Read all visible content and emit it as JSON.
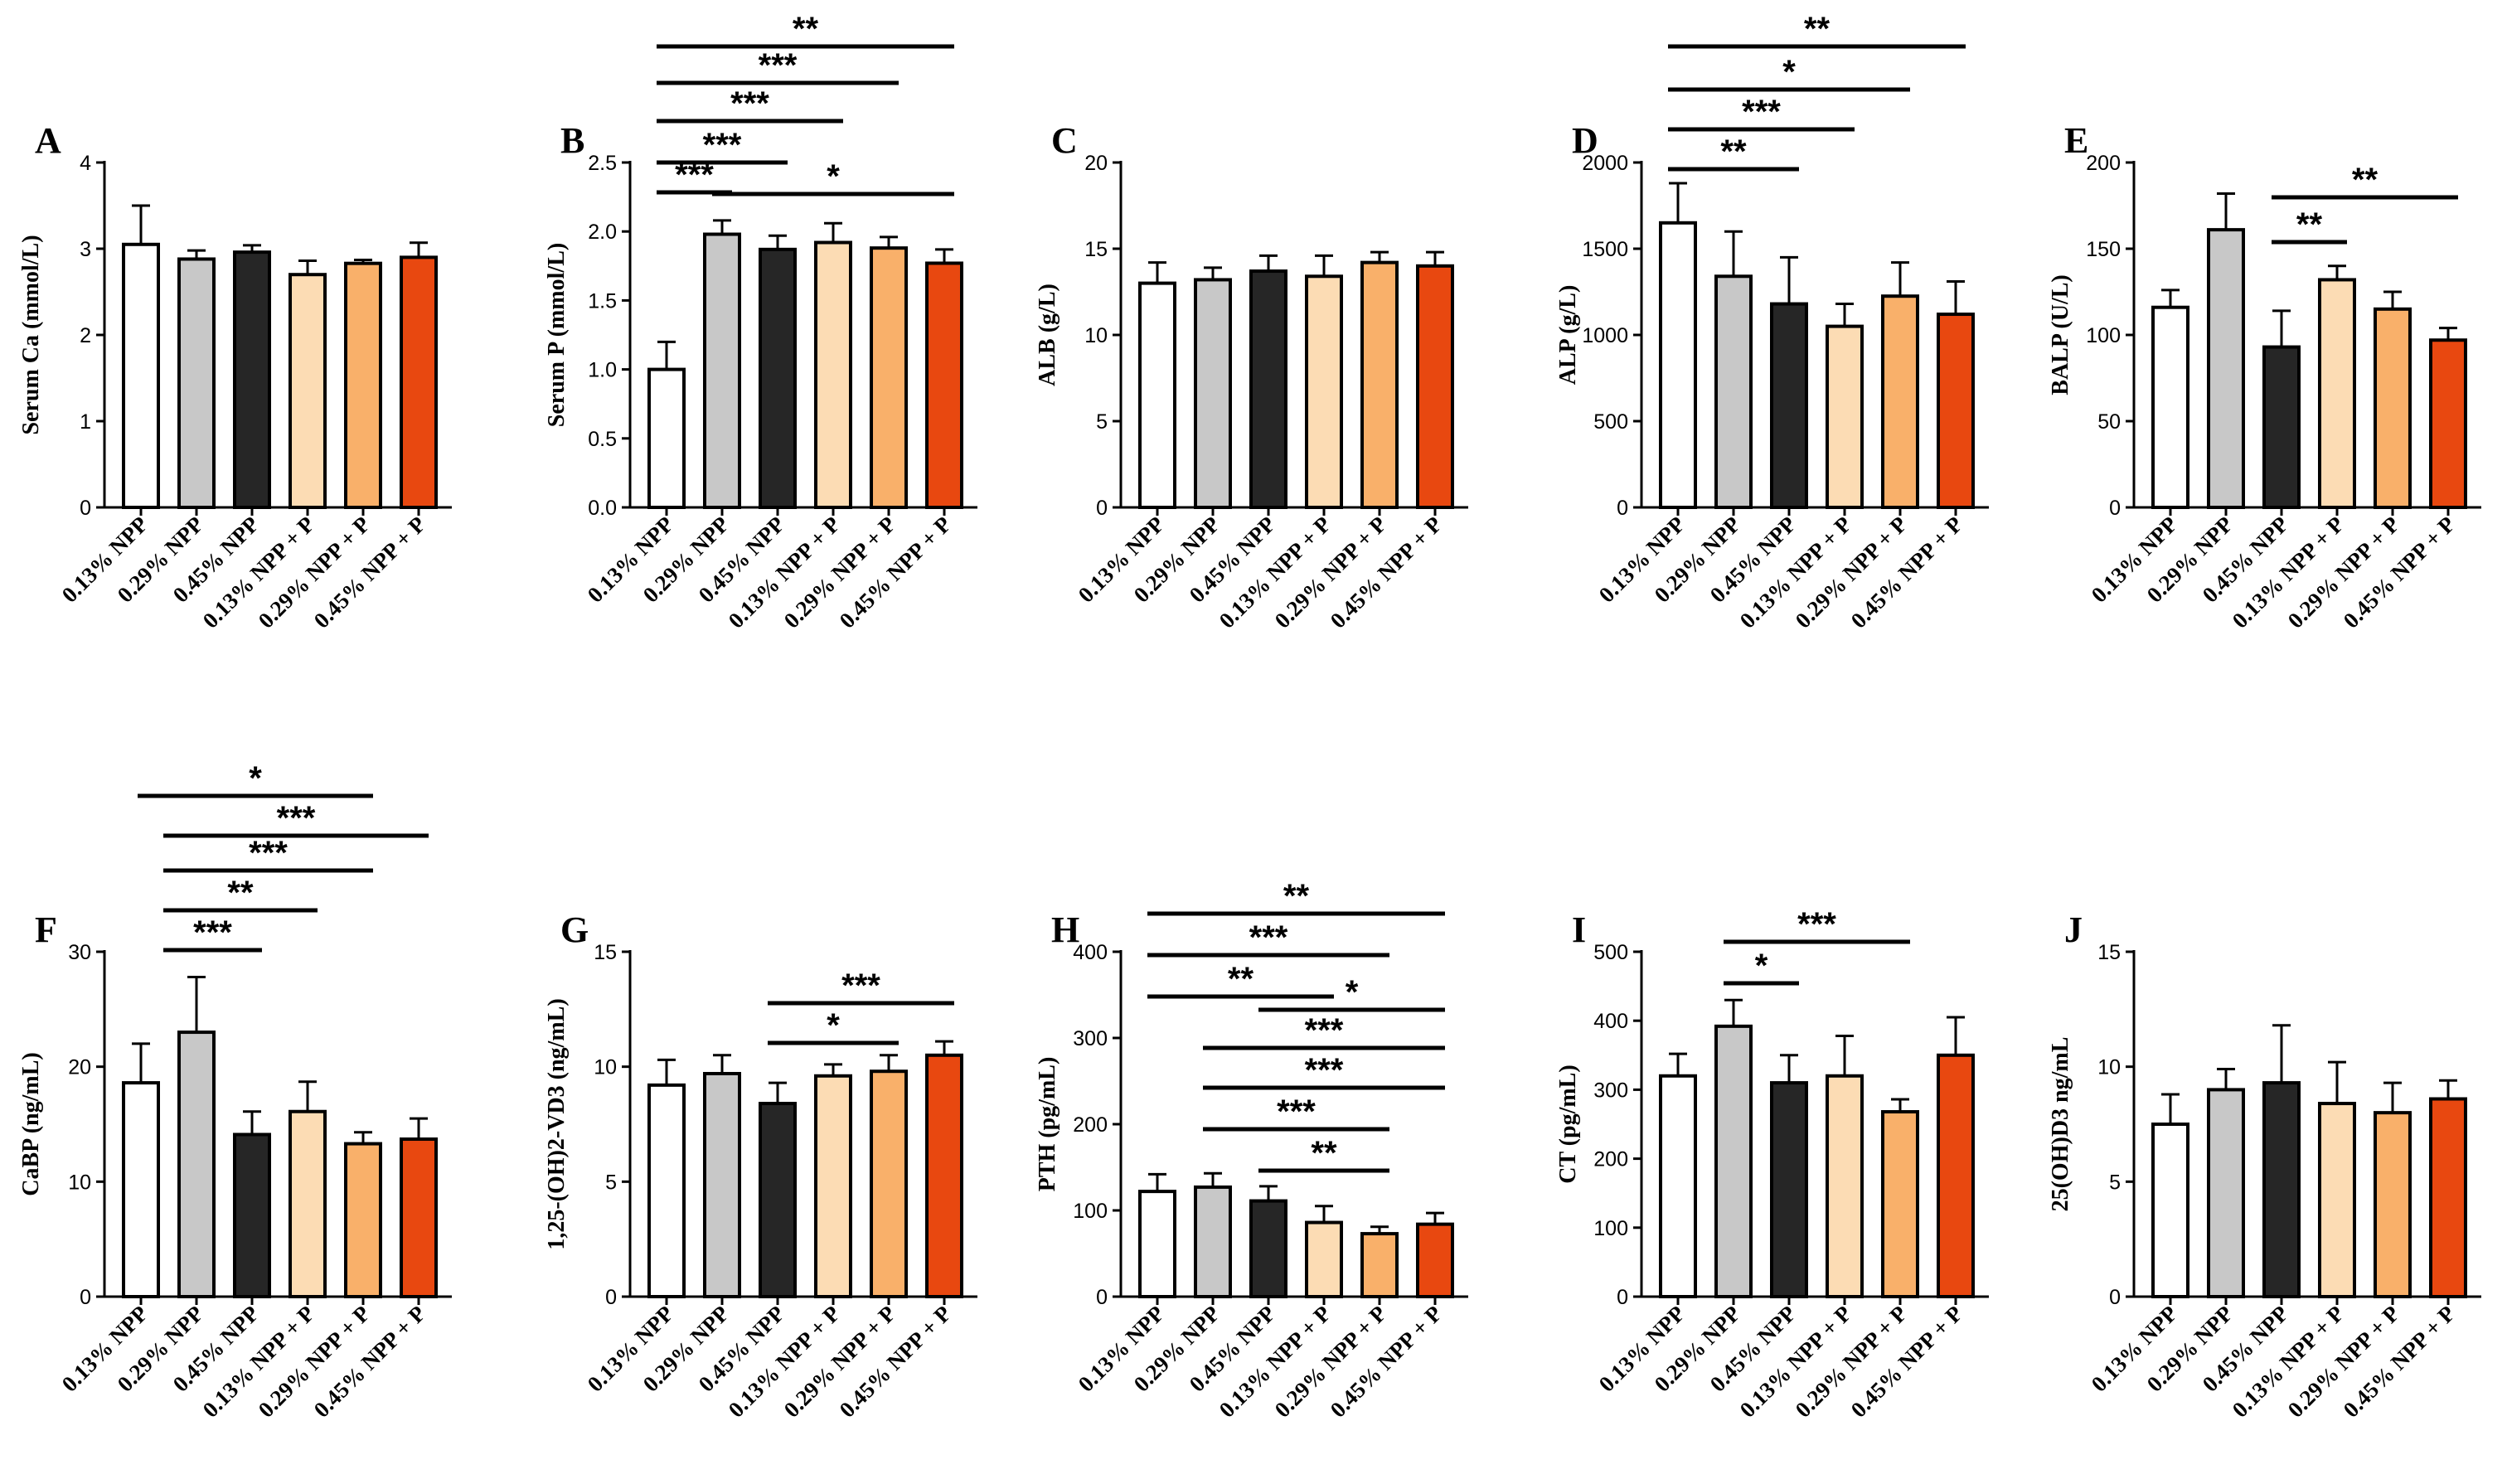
{
  "categories": [
    "0.13% NPP",
    "0.29% NPP",
    "0.45% NPP",
    "0.13% NPP + P",
    "0.29% NPP + P",
    "0.45% NPP + P"
  ],
  "bar_colors": [
    "#ffffff",
    "#c8c8c8",
    "#262626",
    "#fcdcb4",
    "#f9b06a",
    "#e84810"
  ],
  "chart_data": [
    {
      "panel": "A",
      "type": "bar",
      "ylabel": "Serum Ca (mmol/L)",
      "ylim": [
        0,
        4
      ],
      "yticks": [
        0,
        1,
        2,
        3,
        4
      ],
      "values": [
        3.05,
        2.88,
        2.96,
        2.7,
        2.83,
        2.9
      ],
      "errors": [
        0.45,
        0.1,
        0.08,
        0.16,
        0.04,
        0.17
      ],
      "significance": []
    },
    {
      "panel": "B",
      "type": "bar",
      "ylabel": "Serum P (mmol/L)",
      "ylim": [
        0,
        2.5
      ],
      "yticks": [
        "0.0",
        "0.5",
        "1.0",
        "1.5",
        "2.0",
        "2.5"
      ],
      "values": [
        1.0,
        1.98,
        1.87,
        1.92,
        1.88,
        1.77
      ],
      "errors": [
        0.2,
        0.1,
        0.1,
        0.14,
        0.08,
        0.1
      ],
      "significance": [
        {
          "from": 0,
          "to": 5,
          "label": "**"
        },
        {
          "from": 0,
          "to": 4,
          "label": "***"
        },
        {
          "from": 0,
          "to": 3,
          "label": "***"
        },
        {
          "from": 0,
          "to": 2,
          "label": "***"
        },
        {
          "from": 1,
          "to": 5,
          "label": "*"
        },
        {
          "from": 0,
          "to": 1,
          "label": "***"
        }
      ]
    },
    {
      "panel": "C",
      "type": "bar",
      "ylabel": "ALB (g/L)",
      "ylim": [
        0,
        20
      ],
      "yticks": [
        0,
        5,
        10,
        15,
        20
      ],
      "values": [
        13.0,
        13.2,
        13.7,
        13.4,
        14.2,
        14.0
      ],
      "errors": [
        1.2,
        0.7,
        0.9,
        1.2,
        0.6,
        0.8
      ],
      "significance": []
    },
    {
      "panel": "D",
      "type": "bar",
      "ylabel": "ALP (g/L)",
      "ylim": [
        0,
        2000
      ],
      "yticks": [
        0,
        500,
        1000,
        1500,
        2000
      ],
      "values": [
        1650,
        1340,
        1180,
        1050,
        1225,
        1120
      ],
      "errors": [
        230,
        260,
        270,
        130,
        195,
        190
      ],
      "significance": [
        {
          "from": 0,
          "to": 5,
          "label": "**"
        },
        {
          "from": 0,
          "to": 4,
          "label": "*"
        },
        {
          "from": 0,
          "to": 3,
          "label": "***"
        },
        {
          "from": 0,
          "to": 2,
          "label": "**"
        }
      ]
    },
    {
      "panel": "E",
      "type": "bar",
      "ylabel": "BALP (U/L)",
      "ylim": [
        0,
        200
      ],
      "yticks": [
        0,
        50,
        100,
        150,
        200
      ],
      "values": [
        116,
        161,
        93,
        132,
        115,
        97
      ],
      "errors": [
        10,
        21,
        21,
        8,
        10,
        7
      ],
      "significance": [
        {
          "from": 2,
          "to": 5,
          "label": "**"
        },
        {
          "from": 2,
          "to": 3,
          "label": "**"
        }
      ]
    },
    {
      "panel": "F",
      "type": "bar",
      "ylabel": "CaBP (ng/mL)",
      "ylim": [
        0,
        30
      ],
      "yticks": [
        0,
        10,
        20,
        30
      ],
      "values": [
        18.6,
        23.0,
        14.1,
        16.1,
        13.3,
        13.7
      ],
      "errors": [
        3.4,
        4.8,
        2.0,
        2.6,
        1.0,
        1.8
      ],
      "significance": [
        {
          "from": 0,
          "to": 4,
          "label": "*"
        },
        {
          "from": 1,
          "to": 5,
          "label": "***"
        },
        {
          "from": 1,
          "to": 4,
          "label": "***"
        },
        {
          "from": 1,
          "to": 3,
          "label": "**"
        },
        {
          "from": 1,
          "to": 2,
          "label": "***"
        }
      ]
    },
    {
      "panel": "G",
      "type": "bar",
      "ylabel": "1,25-(OH)2-VD3 (ng/mL)",
      "ylim": [
        0,
        15
      ],
      "yticks": [
        0,
        5,
        10,
        15
      ],
      "values": [
        9.2,
        9.7,
        8.4,
        9.6,
        9.8,
        10.5
      ],
      "errors": [
        1.1,
        0.8,
        0.9,
        0.5,
        0.7,
        0.6
      ],
      "significance": [
        {
          "from": 2,
          "to": 5,
          "label": "***"
        },
        {
          "from": 2,
          "to": 4,
          "label": "*"
        }
      ]
    },
    {
      "panel": "H",
      "type": "bar",
      "ylabel": "PTH (pg/mL)",
      "ylim": [
        0,
        400
      ],
      "yticks": [
        0,
        100,
        200,
        300,
        400
      ],
      "values": [
        122,
        127,
        111,
        86,
        73,
        84
      ],
      "errors": [
        20,
        16,
        17,
        19,
        8,
        13
      ],
      "significance": [
        {
          "from": 0,
          "to": 5,
          "label": "**"
        },
        {
          "from": 0,
          "to": 4,
          "label": "***"
        },
        {
          "from": 0,
          "to": 3,
          "label": "**"
        },
        {
          "from": 2,
          "to": 5,
          "label": "*"
        },
        {
          "from": 1,
          "to": 5,
          "label": "***"
        },
        {
          "from": 1,
          "to": 5,
          "label": "***"
        },
        {
          "from": 1,
          "to": 4,
          "label": "***"
        },
        {
          "from": 2,
          "to": 4,
          "label": "**"
        }
      ]
    },
    {
      "panel": "I",
      "type": "bar",
      "ylabel": "CT (pg/mL)",
      "ylim": [
        0,
        500
      ],
      "yticks": [
        0,
        100,
        200,
        300,
        400,
        500
      ],
      "values": [
        320,
        392,
        310,
        320,
        268,
        350
      ],
      "errors": [
        32,
        38,
        40,
        58,
        18,
        55
      ],
      "significance": [
        {
          "from": 1,
          "to": 4,
          "label": "***"
        },
        {
          "from": 1,
          "to": 2,
          "label": "*"
        }
      ]
    },
    {
      "panel": "J",
      "type": "bar",
      "ylabel": "25(OH)D3  ng/mL",
      "ylim": [
        0,
        15
      ],
      "yticks": [
        0,
        5,
        10,
        15
      ],
      "values": [
        7.5,
        9.0,
        9.3,
        8.4,
        8.0,
        8.6
      ],
      "errors": [
        1.3,
        0.9,
        2.5,
        1.8,
        1.3,
        0.8
      ],
      "significance": []
    }
  ]
}
